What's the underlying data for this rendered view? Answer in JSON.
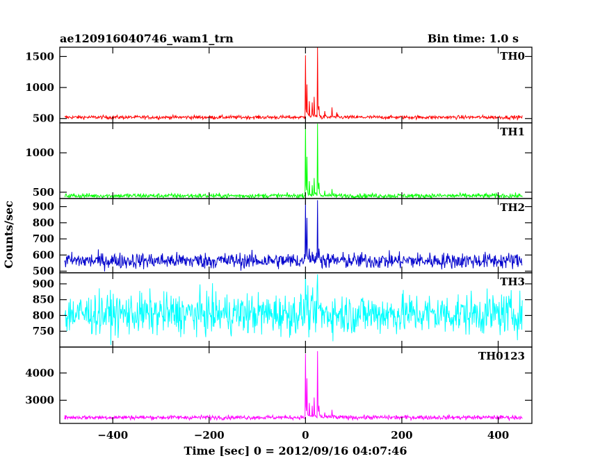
{
  "title_left": "ae120916040746_wam1_trn",
  "title_right": "Bin time: 1.0 s",
  "chart_data": {
    "type": "line",
    "xlabel": "Time [sec] 0 = 2012/09/16 04:07:46",
    "ylabel": "Counts/sec",
    "xlim": [
      -510,
      470
    ],
    "x_ticks": [
      -400,
      -200,
      0,
      200,
      400
    ],
    "x_tick_labels": [
      "−400",
      "−200",
      "0",
      "200",
      "400"
    ],
    "x_data_range": [
      -500,
      450
    ],
    "bin_time_s": 1.0,
    "grid": false,
    "series": [
      {
        "name": "TH0",
        "color": "#ff0000",
        "ylim": [
          430,
          1650
        ],
        "y_ticks": [
          500,
          1000,
          1500
        ],
        "baseline": 520,
        "noise": 15,
        "events": [
          [
            0,
            1520
          ],
          [
            3,
            1050
          ],
          [
            8,
            780
          ],
          [
            14,
            760
          ],
          [
            18,
            850
          ],
          [
            25,
            1660
          ],
          [
            28,
            700
          ],
          [
            40,
            620
          ],
          [
            55,
            680
          ],
          [
            65,
            600
          ]
        ]
      },
      {
        "name": "TH1",
        "color": "#00ff00",
        "ylim": [
          420,
          1380
        ],
        "y_ticks": [
          500,
          1000
        ],
        "baseline": 455,
        "noise": 15,
        "events": [
          [
            0,
            1370
          ],
          [
            3,
            950
          ],
          [
            8,
            640
          ],
          [
            14,
            590
          ],
          [
            18,
            680
          ],
          [
            25,
            1370
          ],
          [
            28,
            620
          ],
          [
            40,
            520
          ],
          [
            55,
            540
          ]
        ]
      },
      {
        "name": "TH2",
        "color": "#0000cc",
        "ylim": [
          490,
          950
        ],
        "y_ticks": [
          500,
          600,
          700,
          800,
          900
        ],
        "baseline": 565,
        "noise": 25,
        "events": [
          [
            0,
            940
          ],
          [
            3,
            830
          ],
          [
            8,
            640
          ],
          [
            14,
            620
          ],
          [
            25,
            940
          ],
          [
            28,
            640
          ]
        ]
      },
      {
        "name": "TH3",
        "color": "#00ffff",
        "ylim": [
          700,
          935
        ],
        "y_ticks": [
          750,
          800,
          850,
          900
        ],
        "baseline": 805,
        "noise": 33,
        "events": [
          [
            0,
            935
          ],
          [
            25,
            930
          ]
        ]
      },
      {
        "name": "TH0123",
        "color": "#ff00ff",
        "ylim": [
          2150,
          4950
        ],
        "y_ticks": [
          3000,
          4000
        ],
        "baseline": 2370,
        "noise": 40,
        "events": [
          [
            0,
            4700
          ],
          [
            3,
            3800
          ],
          [
            8,
            2900
          ],
          [
            14,
            2800
          ],
          [
            18,
            3100
          ],
          [
            25,
            4800
          ],
          [
            28,
            2800
          ],
          [
            40,
            2550
          ],
          [
            55,
            2650
          ]
        ]
      }
    ]
  }
}
